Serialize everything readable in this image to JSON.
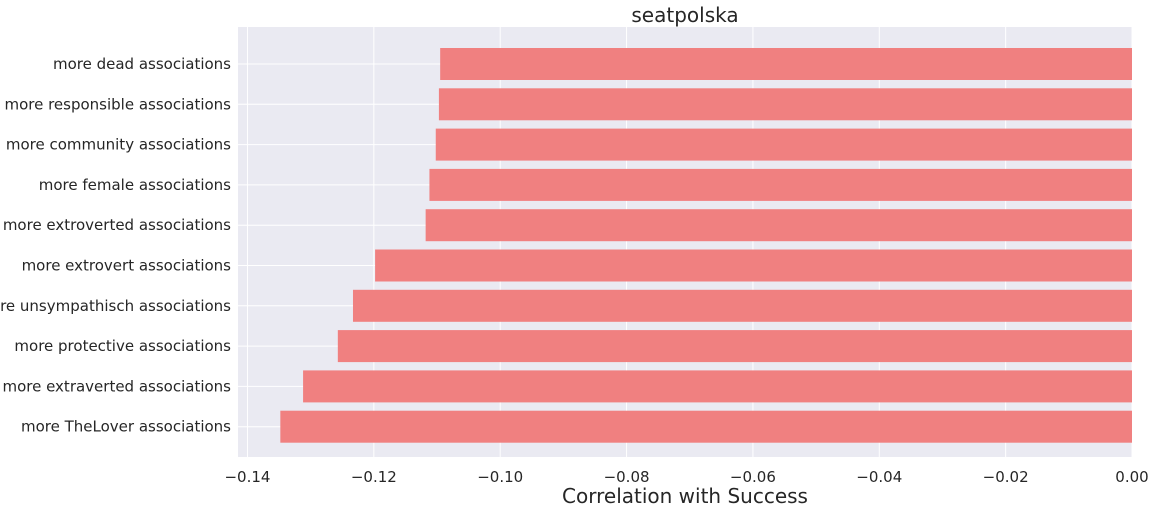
{
  "chart_data": {
    "type": "bar",
    "orientation": "horizontal",
    "title": "seatpolska",
    "xlabel": "Correlation with Success",
    "ylabel": "",
    "xlim": [
      -0.1415,
      0.0
    ],
    "x_ticks": [
      -0.14,
      -0.12,
      -0.1,
      -0.08,
      -0.06,
      -0.04,
      -0.02,
      0.0
    ],
    "x_tick_labels": [
      "−0.14",
      "−0.12",
      "−0.10",
      "−0.08",
      "−0.06",
      "−0.04",
      "−0.02",
      "0.00"
    ],
    "grid": true,
    "bar_color": "#f08080",
    "background_color": "#eaeaf2",
    "categories": [
      "more dead associations",
      "more responsible associations",
      "more community associations",
      "more female associations",
      "more extroverted associations",
      "more extrovert associations",
      "more unsympathisch associations",
      "more protective associations",
      "more extraverted associations",
      "more TheLover associations"
    ],
    "values": [
      -0.1095,
      -0.1097,
      -0.1102,
      -0.1112,
      -0.1118,
      -0.1198,
      -0.1233,
      -0.1257,
      -0.1312,
      -0.1348
    ]
  }
}
